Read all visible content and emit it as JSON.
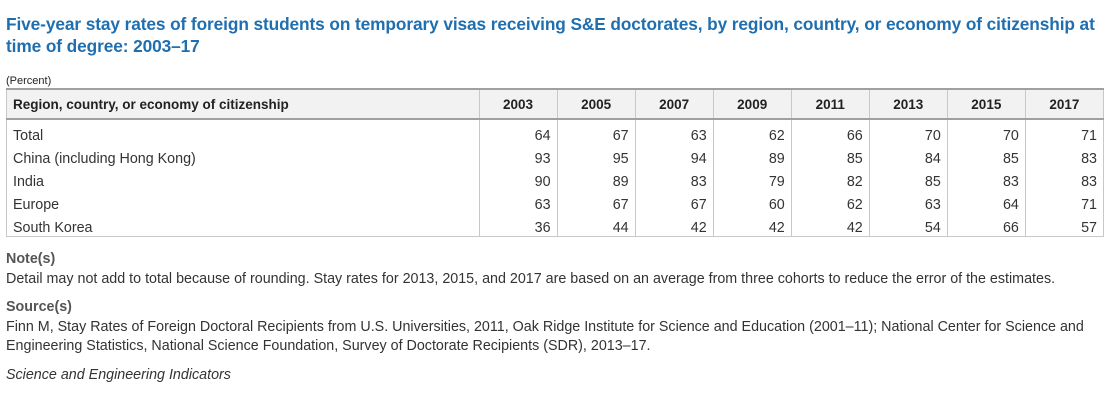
{
  "title": "Five-year stay rates of foreign students on temporary visas receiving S&E doctorates, by region, country, or economy of citizenship at time of degree: 2003–17",
  "unit": "(Percent)",
  "table": {
    "header_first": "Region, country, or economy of citizenship",
    "years": [
      "2003",
      "2005",
      "2007",
      "2009",
      "2011",
      "2013",
      "2015",
      "2017"
    ],
    "rows": [
      {
        "label": "Total",
        "values": [
          "64",
          "67",
          "63",
          "62",
          "66",
          "70",
          "70",
          "71"
        ]
      },
      {
        "label": "China (including Hong Kong)",
        "values": [
          "93",
          "95",
          "94",
          "89",
          "85",
          "84",
          "85",
          "83"
        ]
      },
      {
        "label": "India",
        "values": [
          "90",
          "89",
          "83",
          "79",
          "82",
          "85",
          "83",
          "83"
        ]
      },
      {
        "label": "Europe",
        "values": [
          "63",
          "67",
          "67",
          "60",
          "62",
          "63",
          "64",
          "71"
        ]
      },
      {
        "label": "South Korea",
        "values": [
          "36",
          "44",
          "42",
          "42",
          "42",
          "54",
          "66",
          "57"
        ]
      }
    ]
  },
  "notes": {
    "label": "Note(s)",
    "text": "Detail may not add to total because of rounding. Stay rates for 2013, 2015, and 2017 are based on an average from three cohorts to reduce the error of the estimates."
  },
  "source": {
    "label": "Source(s)",
    "text": "Finn M, Stay Rates of Foreign Doctoral Recipients from U.S. Universities, 2011, Oak Ridge Institute for Science and Education (2001–11); National Center for Science and Engineering Statistics, National Science Foundation, Survey of Doctorate Recipients (SDR), 2013–17."
  },
  "footer": "Science and Engineering Indicators"
}
